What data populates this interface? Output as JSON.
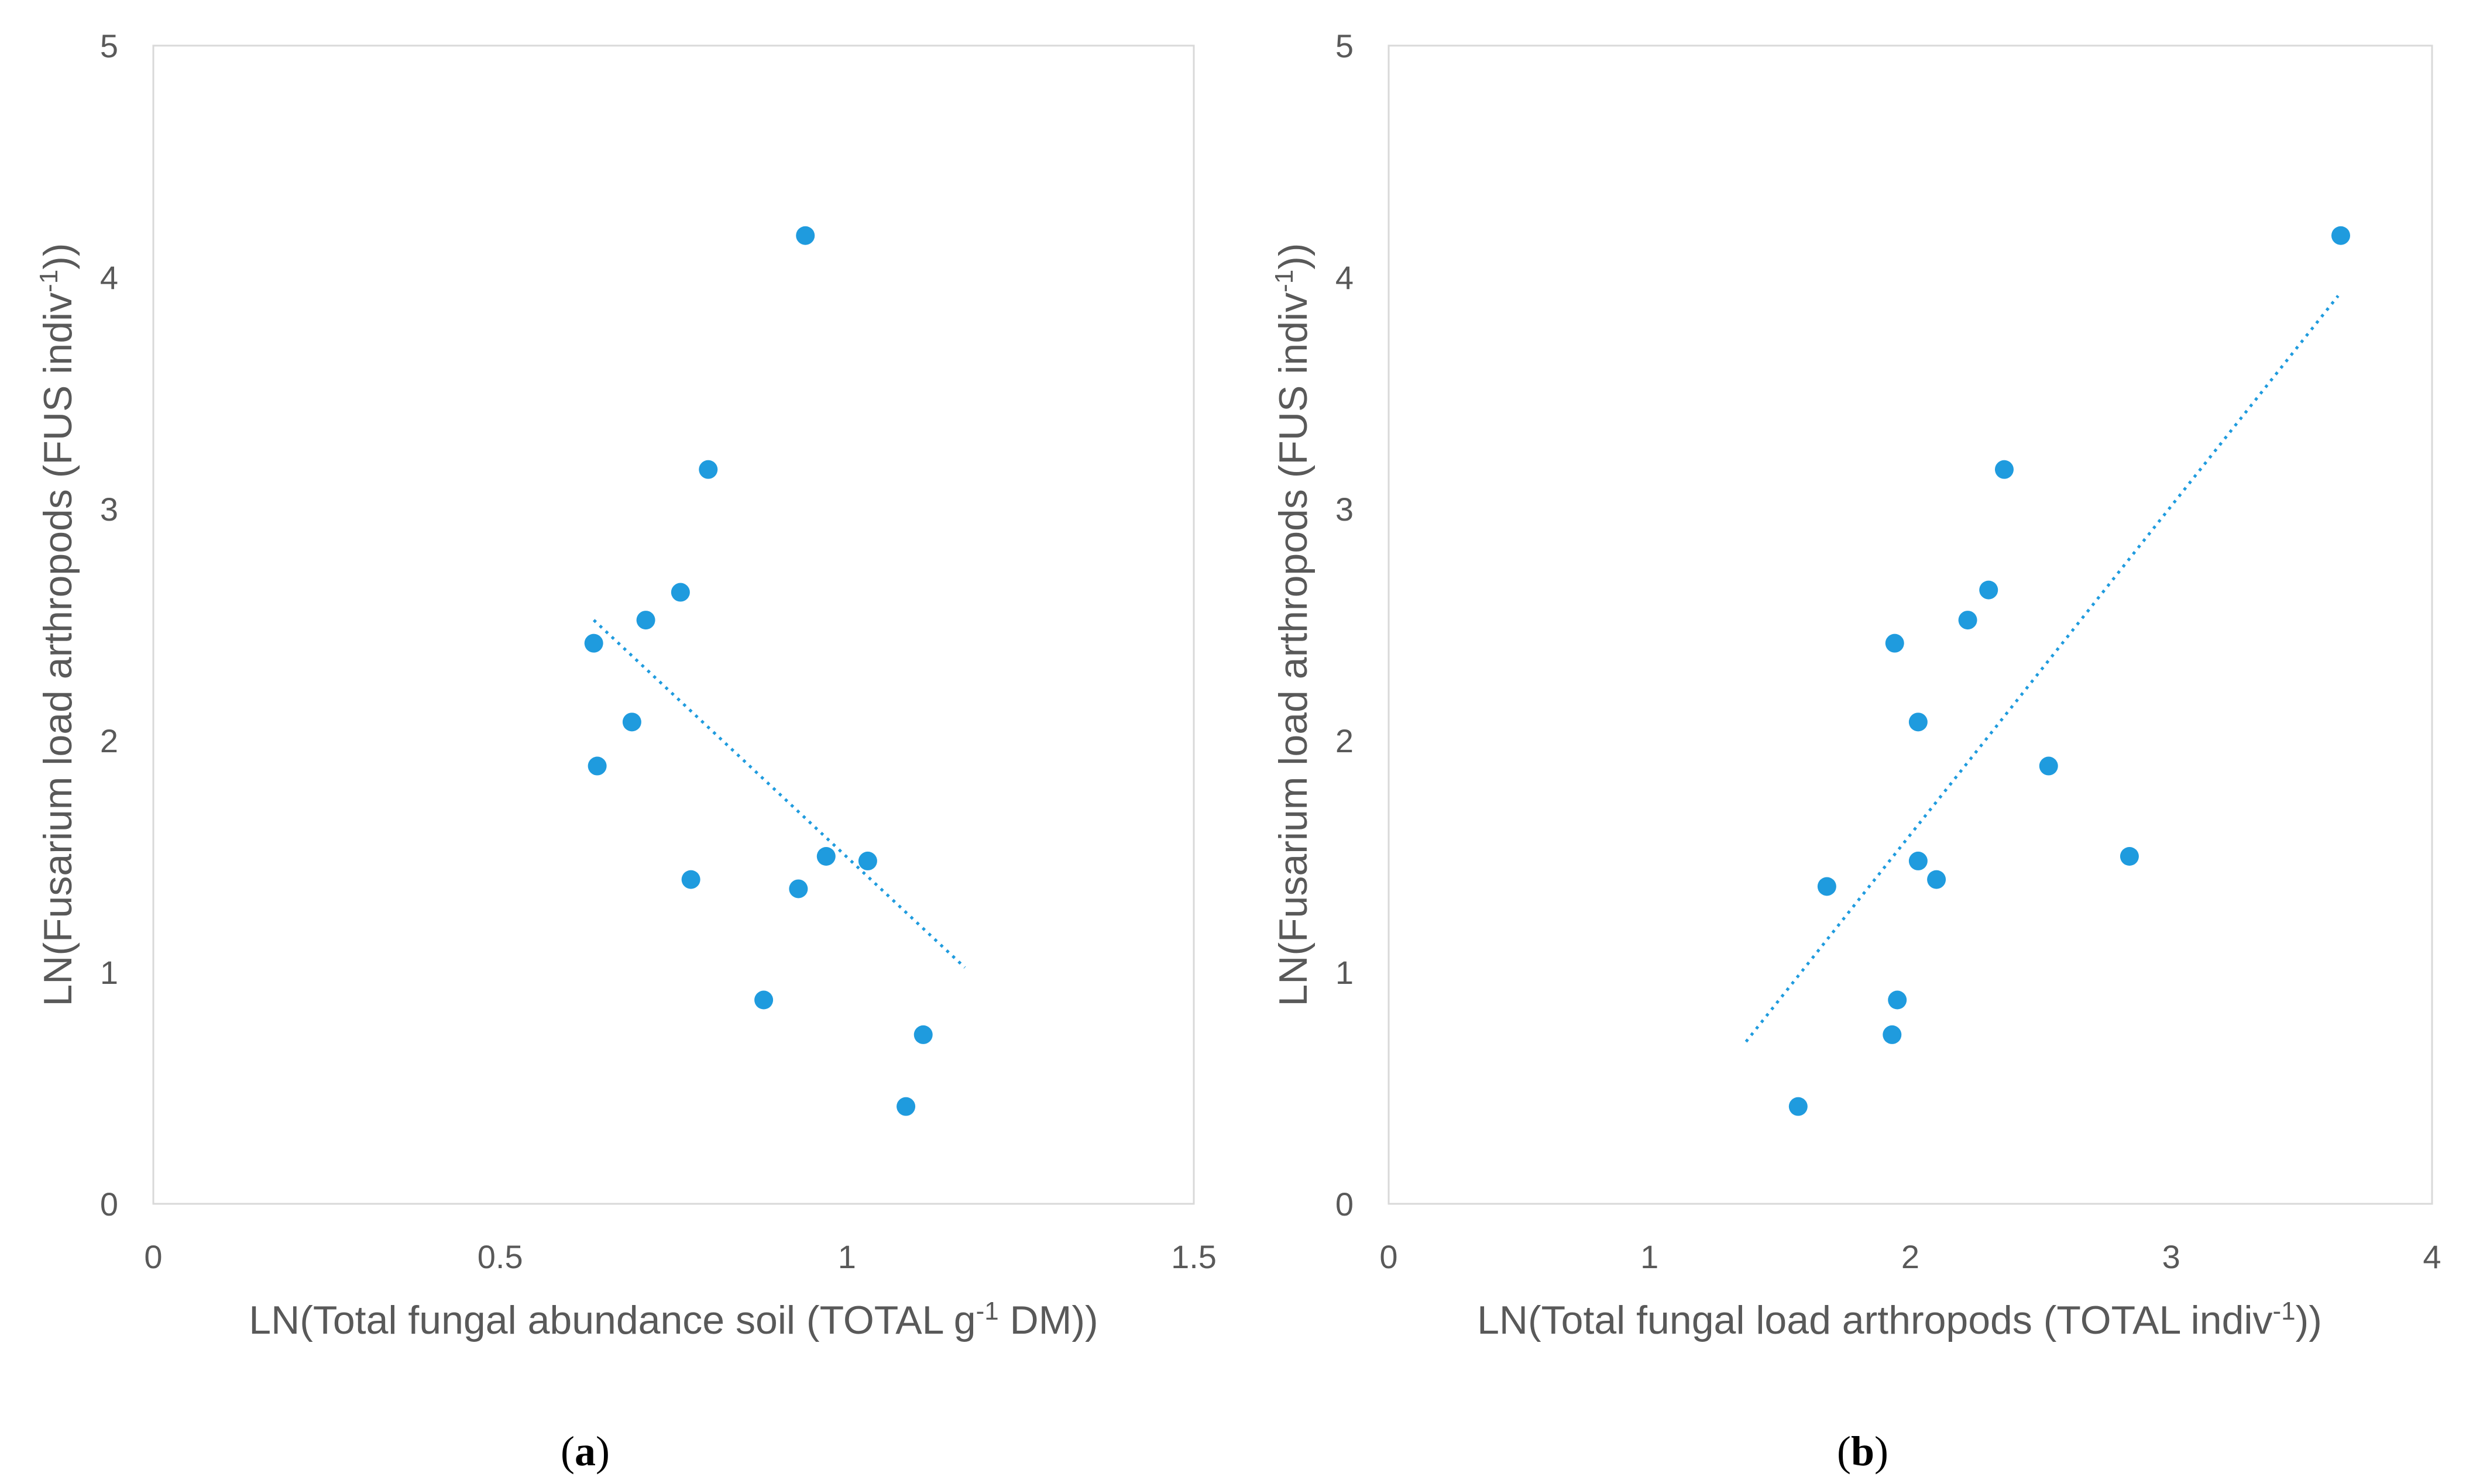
{
  "chart_data": [
    {
      "type": "scatter",
      "panel_label": "a",
      "xlabel_parts": [
        "LN(Total fungal abundance soil (TOTAL g",
        "-1",
        " DM))"
      ],
      "ylabel_parts": [
        "LN(Fusarium load arthropods (FUS indiv",
        "-1",
        "))"
      ],
      "xlim": [
        0,
        1.5
      ],
      "ylim": [
        0,
        5
      ],
      "xticks": [
        0,
        0.5,
        1,
        1.5
      ],
      "xtick_labels": [
        "0",
        "0.5",
        "1",
        "1.5"
      ],
      "yticks": [
        0,
        1,
        2,
        3,
        4,
        5
      ],
      "ytick_labels": [
        "0",
        "1",
        "2",
        "3",
        "4",
        "5"
      ],
      "grid": false,
      "points": [
        {
          "x": 0.94,
          "y": 4.18
        },
        {
          "x": 0.8,
          "y": 3.17
        },
        {
          "x": 0.76,
          "y": 2.64
        },
        {
          "x": 0.71,
          "y": 2.52
        },
        {
          "x": 0.635,
          "y": 2.42
        },
        {
          "x": 0.69,
          "y": 2.08
        },
        {
          "x": 0.64,
          "y": 1.89
        },
        {
          "x": 0.97,
          "y": 1.5
        },
        {
          "x": 1.03,
          "y": 1.48
        },
        {
          "x": 0.775,
          "y": 1.4
        },
        {
          "x": 0.93,
          "y": 1.36
        },
        {
          "x": 0.88,
          "y": 0.88
        },
        {
          "x": 1.11,
          "y": 0.73
        },
        {
          "x": 1.085,
          "y": 0.42
        }
      ],
      "trendline": {
        "style": "dotted",
        "x": [
          0.635,
          1.17
        ],
        "y": [
          2.52,
          1.02
        ]
      },
      "colors": {
        "points": "#1f9bde",
        "trendline": "#1f9bde",
        "frame": "#d9d9d9",
        "text": "#595959"
      }
    },
    {
      "type": "scatter",
      "panel_label": "b",
      "xlabel_parts": [
        "LN(Total fungal load arthropods (TOTAL indiv",
        "-1",
        "))"
      ],
      "ylabel_parts": [
        "LN(Fusarium load arthropods (FUS indiv",
        "-1",
        "))"
      ],
      "xlim": [
        0,
        4
      ],
      "ylim": [
        0,
        5
      ],
      "xticks": [
        0,
        1,
        2,
        3,
        4
      ],
      "xtick_labels": [
        "0",
        "1",
        "2",
        "3",
        "4"
      ],
      "yticks": [
        0,
        1,
        2,
        3,
        4,
        5
      ],
      "ytick_labels": [
        "0",
        "1",
        "2",
        "3",
        "4",
        "5"
      ],
      "grid": false,
      "points": [
        {
          "x": 3.65,
          "y": 4.18
        },
        {
          "x": 2.36,
          "y": 3.17
        },
        {
          "x": 2.3,
          "y": 2.65
        },
        {
          "x": 2.22,
          "y": 2.52
        },
        {
          "x": 1.94,
          "y": 2.42
        },
        {
          "x": 2.03,
          "y": 2.08
        },
        {
          "x": 2.53,
          "y": 1.89
        },
        {
          "x": 2.84,
          "y": 1.5
        },
        {
          "x": 2.03,
          "y": 1.48
        },
        {
          "x": 2.1,
          "y": 1.4
        },
        {
          "x": 1.68,
          "y": 1.37
        },
        {
          "x": 1.95,
          "y": 0.88
        },
        {
          "x": 1.93,
          "y": 0.73
        },
        {
          "x": 1.57,
          "y": 0.42
        }
      ],
      "trendline": {
        "style": "dotted",
        "x": [
          1.37,
          3.64
        ],
        "y": [
          0.7,
          3.92
        ]
      },
      "colors": {
        "points": "#1f9bde",
        "trendline": "#1f9bde",
        "frame": "#d9d9d9",
        "text": "#595959"
      }
    }
  ]
}
